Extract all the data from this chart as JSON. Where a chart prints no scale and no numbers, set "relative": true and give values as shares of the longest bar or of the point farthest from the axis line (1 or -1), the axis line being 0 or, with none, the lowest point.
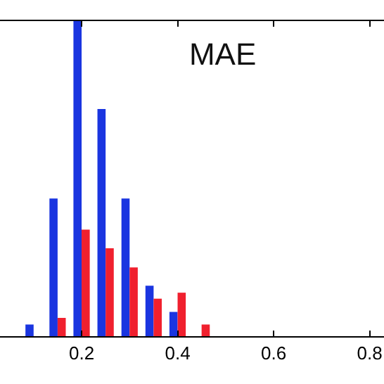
{
  "chart_data": {
    "type": "bar",
    "title": "MAE",
    "relative": true,
    "x": [
      0.1,
      0.15,
      0.2,
      0.25,
      0.3,
      0.35,
      0.4,
      0.45
    ],
    "series": [
      {
        "color": "#1a35e0",
        "values": [
          0.037,
          0.437,
          1,
          0.721,
          0.437,
          0.16,
          0.077,
          0
        ]
      },
      {
        "color": "#f0202e",
        "values": [
          0,
          0.058,
          0.338,
          0.279,
          0.218,
          0.119,
          0.138,
          0.037
        ]
      }
    ],
    "xlim": [
      0.03,
      0.83
    ],
    "xticks": [
      0.2,
      0.4,
      0.6,
      0.8
    ],
    "grid": false
  }
}
